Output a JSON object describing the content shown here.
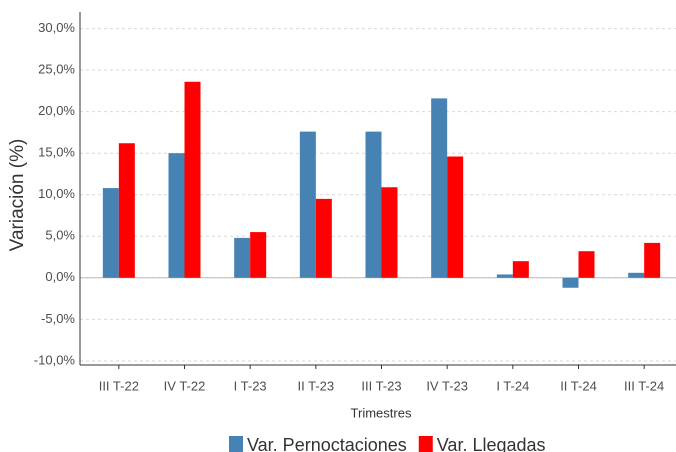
{
  "chart_data": {
    "type": "bar",
    "y_label": "Variación (%)",
    "x_label": "Trimestres",
    "categories": [
      "III T-22",
      "IV T-22",
      "I T-23",
      "II T-23",
      "III T-23",
      "IV T-23",
      "I T-24",
      "II T-24",
      "III T-24"
    ],
    "series": [
      {
        "name": "Var. Pernoctaciones",
        "color": "#4682b4",
        "values": [
          10.8,
          15.0,
          4.8,
          17.6,
          17.6,
          21.6,
          0.4,
          -1.2,
          0.6
        ]
      },
      {
        "name": "Var. Llegadas",
        "color": "#ff0000",
        "values": [
          16.2,
          23.6,
          5.5,
          9.5,
          10.9,
          14.6,
          2.0,
          3.2,
          4.2
        ]
      }
    ],
    "ylim": [
      -10.5,
      32
    ],
    "yticks": [
      {
        "value": -10,
        "label": "-10,0%"
      },
      {
        "value": -5,
        "label": "-5,0%"
      },
      {
        "value": 0,
        "label": "0,0%"
      },
      {
        "value": 5,
        "label": "5,0%"
      },
      {
        "value": 10,
        "label": "10,0%"
      },
      {
        "value": 15,
        "label": "15,0%"
      },
      {
        "value": 20,
        "label": "20,0%"
      },
      {
        "value": 25,
        "label": "25,0%"
      },
      {
        "value": 30,
        "label": "30,0%"
      }
    ],
    "grid": true,
    "legend": "bottom"
  }
}
